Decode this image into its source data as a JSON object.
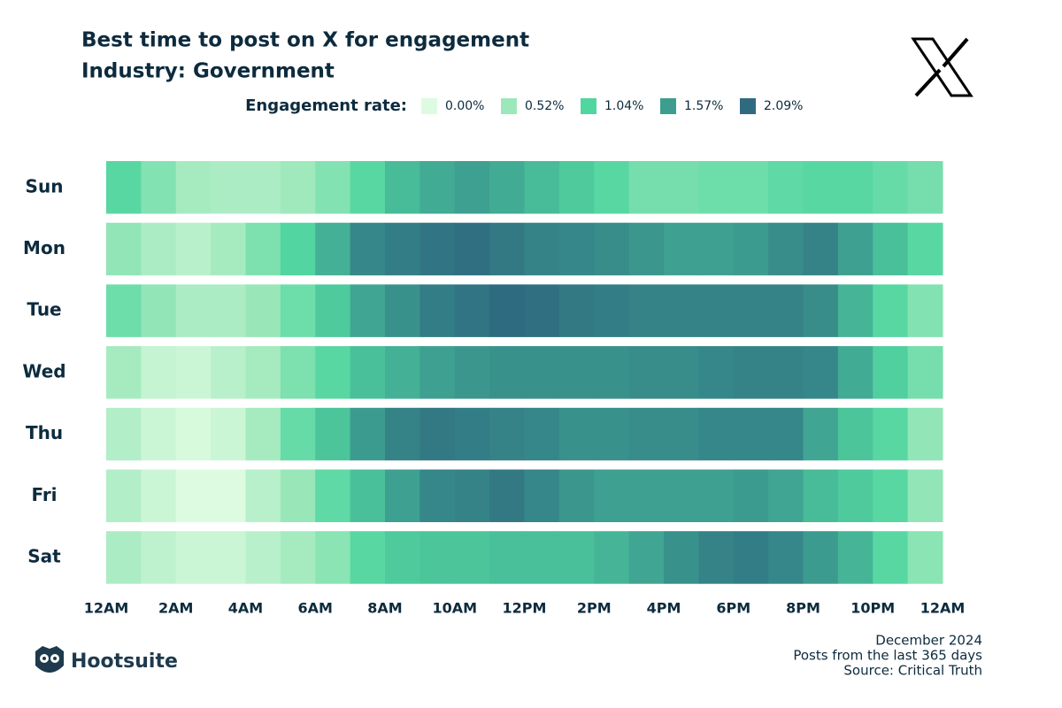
{
  "chart_data": {
    "type": "heatmap",
    "title": "Best time to post on X for engagement",
    "subtitle": "Industry: Government",
    "legend": {
      "title": "Engagement rate:",
      "items": [
        {
          "value": 0,
          "label": "0.00%",
          "color": "#ddfbe0"
        },
        {
          "value": 0.52,
          "label": "0.52%",
          "color": "#9de8bb"
        },
        {
          "value": 1.04,
          "label": "1.04%",
          "color": "#52d6a0"
        },
        {
          "value": 1.57,
          "label": "1.57%",
          "color": "#3d9e90"
        },
        {
          "value": 2.09,
          "label": "2.09%",
          "color": "#2e6b80"
        }
      ]
    },
    "y": [
      "Sun",
      "Mon",
      "Tue",
      "Wed",
      "Thu",
      "Fri",
      "Sat"
    ],
    "x": [
      0,
      1,
      2,
      3,
      4,
      5,
      6,
      7,
      8,
      9,
      10,
      11,
      12,
      13,
      14,
      15,
      16,
      17,
      18,
      19,
      20,
      21,
      22,
      23
    ],
    "xlim": [
      0,
      24
    ],
    "xticks": [
      {
        "value": 0,
        "label": "12AM"
      },
      {
        "value": 2,
        "label": "2AM"
      },
      {
        "value": 4,
        "label": "4AM"
      },
      {
        "value": 6,
        "label": "6AM"
      },
      {
        "value": 8,
        "label": "8AM"
      },
      {
        "value": 10,
        "label": "10AM"
      },
      {
        "value": 12,
        "label": "12PM"
      },
      {
        "value": 14,
        "label": "2PM"
      },
      {
        "value": 16,
        "label": "4PM"
      },
      {
        "value": 18,
        "label": "6PM"
      },
      {
        "value": 20,
        "label": "8PM"
      },
      {
        "value": 22,
        "label": "10PM"
      },
      {
        "value": 24,
        "label": "12AM"
      }
    ],
    "values": [
      [
        1.0,
        0.7,
        0.45,
        0.4,
        0.4,
        0.5,
        0.7,
        1.0,
        1.3,
        1.45,
        1.55,
        1.45,
        1.3,
        1.15,
        1.0,
        0.8,
        0.8,
        0.85,
        0.85,
        0.95,
        1.0,
        1.0,
        0.9,
        0.8
      ],
      [
        0.6,
        0.4,
        0.3,
        0.45,
        0.75,
        1.05,
        1.4,
        1.8,
        1.9,
        2.0,
        2.05,
        1.95,
        1.85,
        1.8,
        1.75,
        1.65,
        1.55,
        1.55,
        1.6,
        1.75,
        1.85,
        1.55,
        1.25,
        1.0
      ],
      [
        0.85,
        0.6,
        0.4,
        0.4,
        0.55,
        0.85,
        1.15,
        1.5,
        1.7,
        1.9,
        2.0,
        2.09,
        2.05,
        1.95,
        1.9,
        1.85,
        1.85,
        1.85,
        1.85,
        1.85,
        1.75,
        1.35,
        1.0,
        0.7
      ],
      [
        0.45,
        0.2,
        0.15,
        0.3,
        0.45,
        0.75,
        1.0,
        1.25,
        1.4,
        1.55,
        1.65,
        1.7,
        1.7,
        1.7,
        1.7,
        1.75,
        1.75,
        1.8,
        1.85,
        1.85,
        1.8,
        1.45,
        1.1,
        0.8
      ],
      [
        0.35,
        0.15,
        0.05,
        0.15,
        0.45,
        0.9,
        1.2,
        1.6,
        1.85,
        1.95,
        1.9,
        1.85,
        1.8,
        1.7,
        1.7,
        1.75,
        1.75,
        1.8,
        1.8,
        1.8,
        1.5,
        1.2,
        1.0,
        0.6
      ],
      [
        0.35,
        0.15,
        0.0,
        0.0,
        0.3,
        0.55,
        0.95,
        1.25,
        1.55,
        1.8,
        1.85,
        1.95,
        1.8,
        1.65,
        1.55,
        1.55,
        1.55,
        1.55,
        1.6,
        1.5,
        1.3,
        1.15,
        1.0,
        0.6
      ],
      [
        0.4,
        0.25,
        0.15,
        0.15,
        0.3,
        0.45,
        0.65,
        1.0,
        1.15,
        1.2,
        1.2,
        1.25,
        1.25,
        1.25,
        1.35,
        1.5,
        1.7,
        1.85,
        1.9,
        1.8,
        1.6,
        1.35,
        1.0,
        0.65
      ]
    ],
    "logo": "Hootsuite",
    "footer": [
      "December 2024",
      "Posts from the last 365 days",
      "Source: Critical Truth"
    ]
  }
}
